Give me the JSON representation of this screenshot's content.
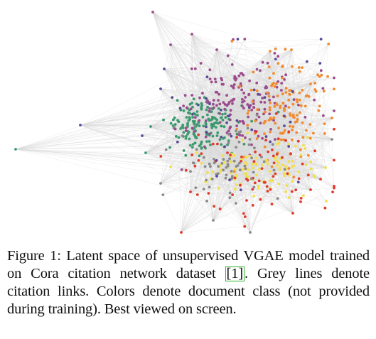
{
  "figure": {
    "label": "Figure 1:",
    "caption_before_cite": "Latent space of unsupervised VGAE model trained on Cora citation network dataset ",
    "cite_label": "[1]",
    "caption_after_cite": ". Grey lines denote citation links. Colors denote document class (not provided during training). Best viewed on screen."
  },
  "chart_data": {
    "type": "scatter",
    "title": "",
    "xlabel": "",
    "ylabel": "",
    "grid": false,
    "legend": "none",
    "edge_color": "#d9d9d9",
    "series": [
      {
        "color": "#3a9a6e",
        "cluster": "left-center",
        "approx_points": 160
      },
      {
        "color": "#9c4b8c",
        "cluster": "upper-center",
        "approx_points": 170
      },
      {
        "color": "#f28a2e",
        "cluster": "upper-right",
        "approx_points": 140
      },
      {
        "color": "#f2df4a",
        "cluster": "lower-right",
        "approx_points": 110
      },
      {
        "color": "#e23a2a",
        "cluster": "lower-right-spread",
        "approx_points": 75
      },
      {
        "color": "#8a8a8a",
        "cluster": "lower-center",
        "approx_points": 70
      },
      {
        "color": "#5b4a95",
        "cluster": "scattered",
        "approx_points": 40
      }
    ]
  }
}
